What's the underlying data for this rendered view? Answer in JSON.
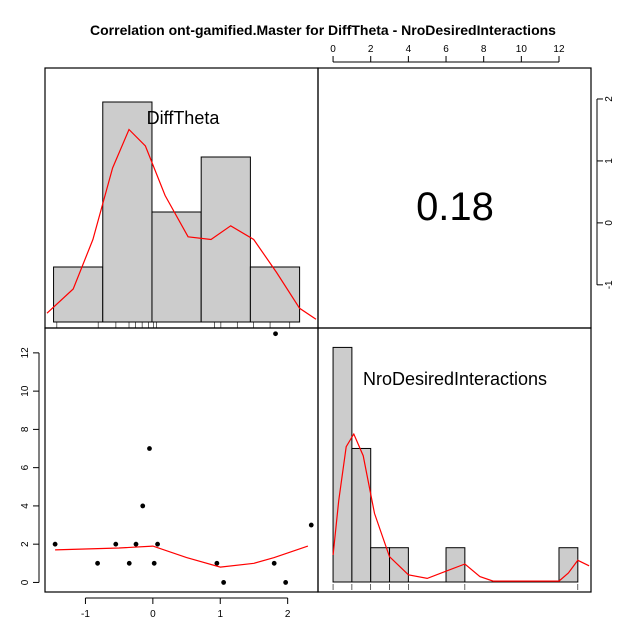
{
  "title": "Correlation ont-gamified.Master for DiffTheta - NroDesiredInteractions",
  "chart_data": {
    "type": "scatter-matrix",
    "title": "Correlation ont-gamified.Master for DiffTheta - NroDesiredInteractions",
    "variables": [
      "DiffTheta",
      "NroDesiredInteractions"
    ],
    "correlation": "0.18",
    "scatter": {
      "x": [
        -1.45,
        -0.82,
        -0.55,
        -0.35,
        -0.25,
        -0.15,
        -0.05,
        0.02,
        0.07,
        0.95,
        1.05,
        1.8,
        1.82,
        1.97,
        2.35
      ],
      "y": [
        2,
        1,
        2,
        1,
        2,
        4,
        7,
        1,
        2,
        1,
        0,
        1,
        13,
        0,
        3
      ],
      "xlim": [
        -1.6,
        2.45
      ],
      "ylim": [
        -0.5,
        13.3
      ],
      "xticks": [
        "-1",
        "0",
        "1",
        "2"
      ],
      "yticks": [
        "0",
        "2",
        "4",
        "6",
        "8",
        "10",
        "12"
      ],
      "smooth": [
        [
          -1.45,
          1.7
        ],
        [
          -0.5,
          1.8
        ],
        [
          0.0,
          1.9
        ],
        [
          0.5,
          1.3
        ],
        [
          1.0,
          0.8
        ],
        [
          1.5,
          1.0
        ],
        [
          1.8,
          1.3
        ],
        [
          2.3,
          1.9
        ]
      ]
    },
    "diag_difftheta": {
      "bins": [
        -1.5,
        -0.75,
        0.0,
        0.75,
        1.5,
        2.25
      ],
      "counts": [
        1,
        4,
        2,
        3,
        1
      ],
      "ymax": 4.4,
      "rug": [
        -1.45,
        -0.82,
        -0.55,
        -0.35,
        -0.25,
        -0.15,
        -0.05,
        0.02,
        0.07,
        0.95,
        1.05,
        1.3,
        1.55,
        1.8,
        2.1
      ],
      "density": [
        [
          -1.6,
          0.16
        ],
        [
          -1.2,
          0.6
        ],
        [
          -0.9,
          1.5
        ],
        [
          -0.6,
          2.8
        ],
        [
          -0.35,
          3.5
        ],
        [
          -0.1,
          3.2
        ],
        [
          0.2,
          2.3
        ],
        [
          0.55,
          1.55
        ],
        [
          0.9,
          1.5
        ],
        [
          1.2,
          1.75
        ],
        [
          1.55,
          1.5
        ],
        [
          1.9,
          0.9
        ],
        [
          2.25,
          0.25
        ],
        [
          2.5,
          0.05
        ]
      ]
    },
    "diag_nrodesired": {
      "bins": [
        0,
        1,
        2,
        3,
        4,
        5,
        6,
        7,
        8,
        9,
        10,
        11,
        12,
        13
      ],
      "counts": [
        13,
        7.4,
        1.9,
        1.9,
        0,
        0,
        1.9,
        0,
        0,
        0,
        0,
        0,
        1.9
      ],
      "ymax": 13.3,
      "rug": [
        0,
        1,
        2,
        3,
        4,
        7,
        13
      ],
      "xticks": [
        "0",
        "2",
        "4",
        "6",
        "8",
        "10",
        "12"
      ],
      "density": [
        [
          0,
          1.5
        ],
        [
          0.3,
          4.5
        ],
        [
          0.7,
          7.5
        ],
        [
          1.1,
          8.2
        ],
        [
          1.6,
          7.0
        ],
        [
          2.2,
          3.8
        ],
        [
          3.0,
          1.4
        ],
        [
          4.0,
          0.4
        ],
        [
          5.0,
          0.2
        ],
        [
          6.0,
          0.6
        ],
        [
          7.0,
          1.0
        ],
        [
          7.8,
          0.3
        ],
        [
          8.5,
          0.05
        ],
        [
          12.0,
          0.05
        ],
        [
          12.5,
          0.5
        ],
        [
          13.0,
          1.2
        ],
        [
          13.6,
          0.9
        ]
      ]
    },
    "right_axis": {
      "yticks": [
        "-1",
        "0",
        "1",
        "2"
      ]
    },
    "top_axis": {
      "xticks": [
        "0",
        "2",
        "4",
        "6",
        "8",
        "10",
        "12"
      ]
    },
    "colors": {
      "bar_fill": "#cccccc",
      "bar_stroke": "#000000",
      "curve": "#ff0000",
      "point": "#000000"
    }
  }
}
